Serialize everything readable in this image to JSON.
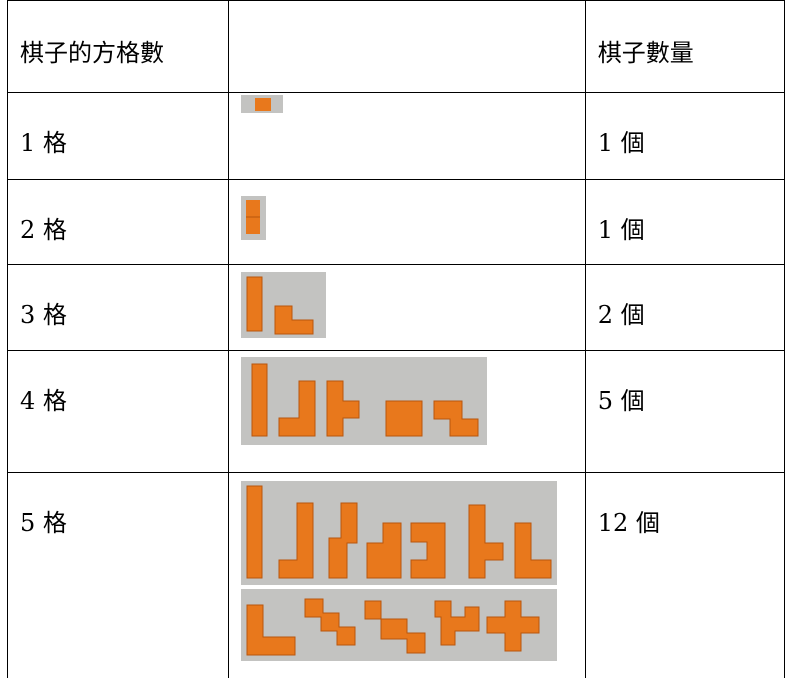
{
  "table": {
    "headers": [
      "棋子的方格數",
      "",
      "棋子數量"
    ],
    "rows": [
      {
        "squares": "1 格",
        "count": "1 個",
        "pieces": [
          "monomino"
        ]
      },
      {
        "squares": "2 格",
        "count": "1 個",
        "pieces": [
          "domino"
        ]
      },
      {
        "squares": "3 格",
        "count": "2 個",
        "pieces": [
          "I-tromino",
          "L-tromino"
        ]
      },
      {
        "squares": "4 格",
        "count": "5 個",
        "pieces": [
          "I-tetromino",
          "J-tetromino",
          "T-tetromino",
          "O-tetromino",
          "S-tetromino"
        ]
      },
      {
        "squares": "5 格",
        "count": "12 個",
        "pieces": [
          "I-pentomino",
          "L-pentomino",
          "N-pentomino",
          "P-pentomino",
          "U-pentomino",
          "F-pentomino",
          "V-pentomino",
          "W-pentomino",
          "Z-pentomino",
          "T-pentomino",
          "Y-pentomino",
          "X-pentomino"
        ]
      }
    ]
  },
  "colors": {
    "piece": "#e8781c",
    "piece_dark": "#b9560d",
    "background_photo": "#c3c3c1"
  }
}
